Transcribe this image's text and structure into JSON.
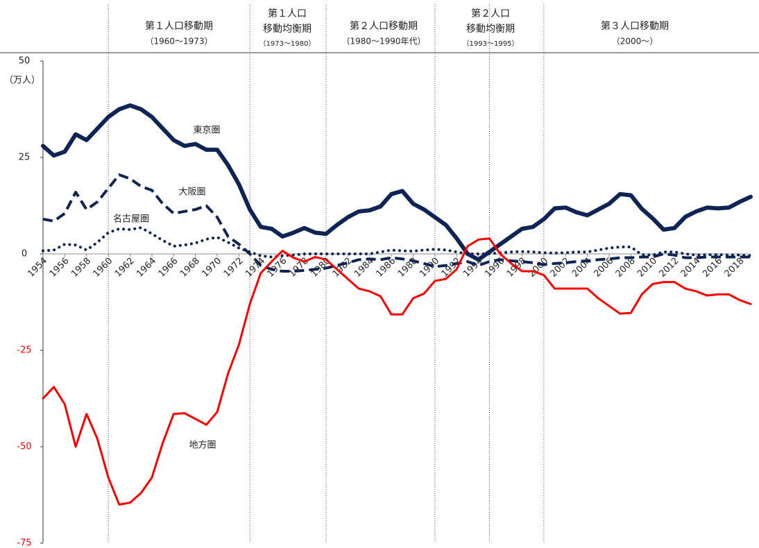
{
  "chart_data": {
    "type": "line",
    "y_label": "（万人）",
    "periods": [
      {
        "title": [
          "第１人口移動期"
        ],
        "sub": "（1960〜1973）"
      },
      {
        "title": [
          "第１人口",
          "移動均衡期"
        ],
        "sub": "（1973〜1980）"
      },
      {
        "title": [
          "第２人口移動期"
        ],
        "sub": "（1980〜1990年代）"
      },
      {
        "title": [
          "第２人口",
          "移動均衡期"
        ],
        "sub": "（1993〜1995）"
      },
      {
        "title": [
          "第３人口移動期"
        ],
        "sub": "（2000〜）"
      }
    ],
    "period_lines": [
      1960,
      1973,
      1980,
      1990,
      1995,
      2000
    ],
    "x": [
      1954,
      1955,
      1956,
      1957,
      1958,
      1959,
      1960,
      1961,
      1962,
      1963,
      1964,
      1965,
      1966,
      1967,
      1968,
      1969,
      1970,
      1971,
      1972,
      1973,
      1974,
      1975,
      1976,
      1977,
      1978,
      1979,
      1980,
      1981,
      1982,
      1983,
      1984,
      1985,
      1986,
      1987,
      1988,
      1989,
      1990,
      1991,
      1992,
      1993,
      1994,
      1995,
      1996,
      1997,
      1998,
      1999,
      2000,
      2001,
      2002,
      2003,
      2004,
      2005,
      2006,
      2007,
      2008,
      2009,
      2010,
      2011,
      2012,
      2013,
      2014,
      2015,
      2016,
      2017,
      2018,
      2019
    ],
    "xlim": [
      1954,
      2019
    ],
    "xticks": [
      1954,
      1956,
      1958,
      1960,
      1962,
      1964,
      1966,
      1968,
      1970,
      1972,
      1974,
      1976,
      1978,
      1980,
      1982,
      1984,
      1986,
      1988,
      1990,
      1992,
      1994,
      1996,
      1998,
      2000,
      2002,
      2004,
      2006,
      2008,
      2010,
      2012,
      2014,
      2016,
      2018
    ],
    "ylim": [
      -75,
      50
    ],
    "yticks": [
      50,
      25,
      0,
      -25,
      -50,
      -75
    ],
    "series": [
      {
        "name": "東京圏",
        "color": "#0e2454",
        "dash": "solid",
        "width": 6,
        "values": [
          28,
          25.5,
          26.5,
          31,
          29.5,
          32.5,
          35.5,
          37.5,
          38.5,
          37.5,
          35.5,
          32.5,
          29.5,
          28,
          28.5,
          27,
          27,
          23,
          18,
          11.5,
          7,
          6.5,
          4.5,
          5.5,
          6.7,
          5.5,
          5.2,
          7.5,
          9.5,
          11,
          11.3,
          12.3,
          15.5,
          16.3,
          13,
          11.5,
          9.5,
          7.5,
          4,
          0,
          -1.5,
          0.5,
          2.5,
          4.5,
          6.5,
          7,
          9,
          11.8,
          12,
          10.8,
          10,
          11.5,
          13,
          15.5,
          15.2,
          11.7,
          9.2,
          6.3,
          6.7,
          9.6,
          11,
          12,
          11.8,
          12,
          13.5,
          14.8
        ]
      },
      {
        "name": "大阪圏",
        "color": "#0e2454",
        "dash": "dashed",
        "width": 4,
        "values": [
          9,
          8.5,
          10.5,
          16,
          11.5,
          13.5,
          17,
          20.5,
          19.5,
          17.5,
          16.5,
          13,
          10.5,
          11,
          11.5,
          12.5,
          9.5,
          4.5,
          2.5,
          0,
          -3,
          -4,
          -4.5,
          -4.5,
          -4.3,
          -4,
          -3.7,
          -3,
          -2.3,
          -1.5,
          -1.3,
          -1.5,
          -1,
          -1.3,
          -1.8,
          -2.5,
          -3.3,
          -3,
          -2.5,
          -2,
          -3,
          -2,
          -1.5,
          -1.8,
          -2,
          -2.3,
          -2.8,
          -2.5,
          -2.3,
          -2,
          -1.8,
          -1.5,
          -1.3,
          -1,
          -1,
          -0.8,
          -0.8,
          0,
          -0.3,
          -1,
          -1,
          -0.8,
          -0.8,
          -0.8,
          -0.8,
          -0.8
        ]
      },
      {
        "name": "名古屋圏",
        "color": "#0e2454",
        "dash": "dotted",
        "width": 4,
        "values": [
          0.8,
          1,
          2.5,
          2.3,
          1,
          3,
          5.5,
          6.5,
          6.3,
          6.8,
          5.2,
          3.5,
          2,
          2.3,
          2.8,
          3.8,
          4.3,
          3,
          1.5,
          0.5,
          -0.5,
          -0.8,
          -0.5,
          -0.3,
          0,
          0,
          0,
          0,
          0,
          0,
          0,
          0.5,
          1,
          0.8,
          0.7,
          1,
          1.2,
          1,
          0.5,
          0,
          0,
          0,
          0.3,
          0.5,
          0.6,
          0.5,
          0.3,
          0.2,
          0.3,
          0.5,
          0.5,
          1,
          1.5,
          1.8,
          1.8,
          -0.2,
          -0.3,
          0.5,
          0.5,
          0,
          -0.3,
          -0.2,
          -0.2,
          -0.3,
          -0.3,
          -0.5
        ]
      },
      {
        "name": "地方圏",
        "color": "#ff0000",
        "dash": "solid",
        "width": 3,
        "values": [
          -37.5,
          -34.5,
          -39,
          -50,
          -41.5,
          -48,
          -58,
          -65,
          -64.5,
          -62,
          -58,
          -49,
          -41.5,
          -41.3,
          -42.8,
          -44.3,
          -41,
          -31,
          -23.5,
          -13,
          -5,
          -2,
          0.8,
          -1,
          -2,
          -0.8,
          -1.5,
          -4,
          -6.5,
          -9,
          -9.7,
          -11,
          -15.7,
          -15.7,
          -11.5,
          -10.3,
          -7,
          -6.5,
          -4,
          2,
          3.7,
          4,
          0,
          -2.5,
          -4.5,
          -4.5,
          -5.5,
          -9,
          -9,
          -9,
          -9,
          -11.5,
          -13.5,
          -15.5,
          -15.3,
          -10.5,
          -7.8,
          -7.3,
          -7.3,
          -9,
          -9.7,
          -10.8,
          -10.5,
          -10.5,
          -12,
          -13
        ]
      }
    ]
  }
}
